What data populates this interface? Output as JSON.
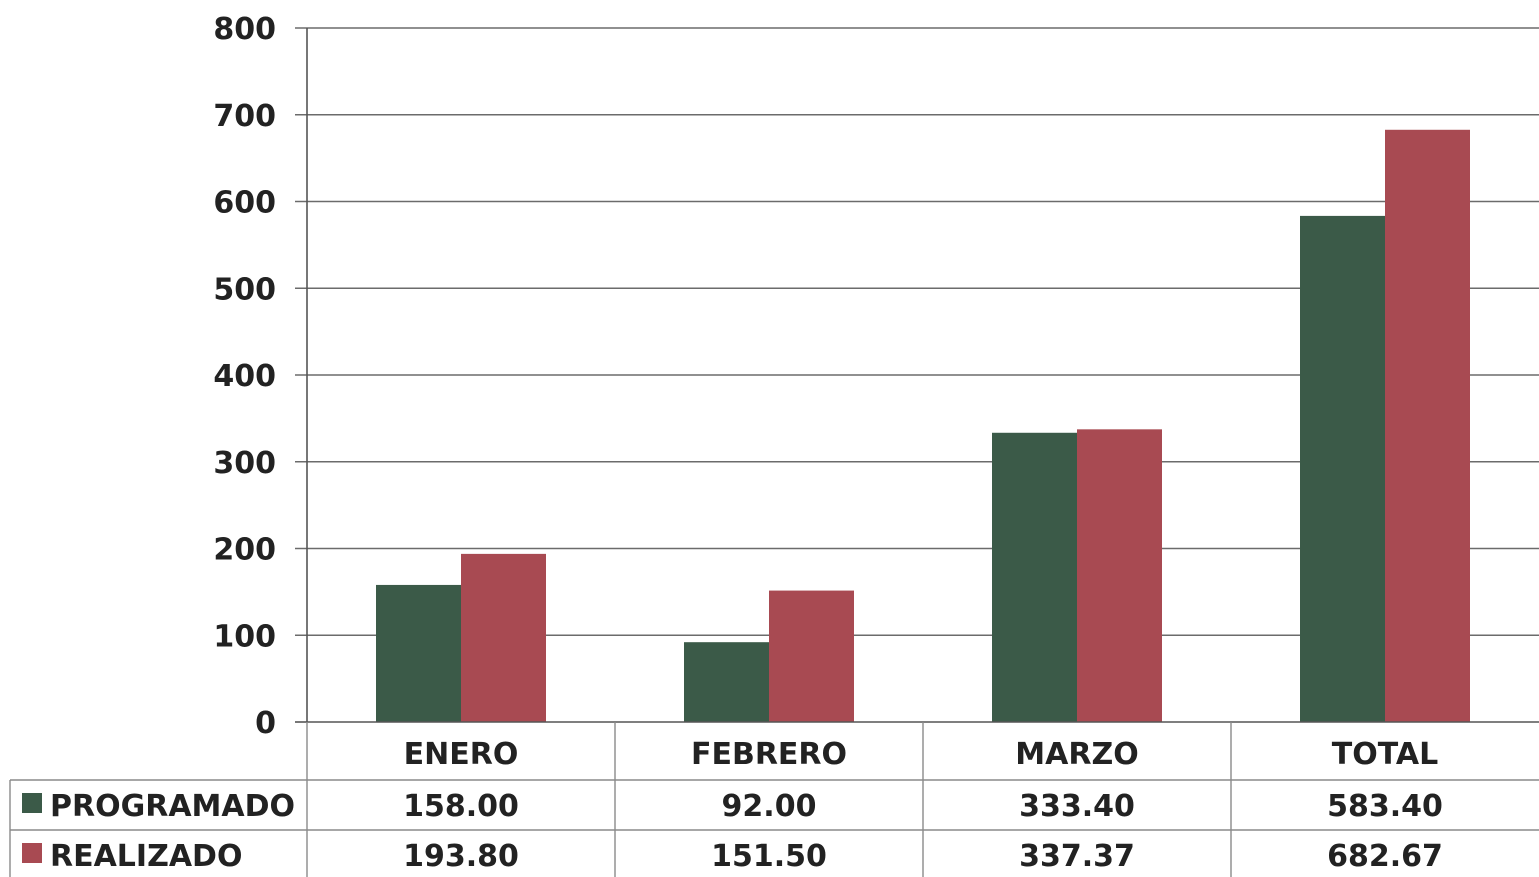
{
  "chart_data": {
    "type": "bar",
    "categories": [
      "ENERO",
      "FEBRERO",
      "MARZO",
      "TOTAL"
    ],
    "series": [
      {
        "name": "PROGRAMADO",
        "color": "#3b5a48",
        "values": [
          158.0,
          92.0,
          333.4,
          583.4
        ],
        "labels": [
          "158.00",
          "92.00",
          "333.40",
          "583.40"
        ]
      },
      {
        "name": "REALIZADO",
        "color": "#a84a52",
        "values": [
          193.8,
          151.5,
          337.37,
          682.67
        ],
        "labels": [
          "193.80",
          "151.50",
          "337.37",
          "682.67"
        ]
      }
    ],
    "yticks": [
      "0",
      "100",
      "200",
      "300",
      "400",
      "500",
      "600",
      "700",
      "800"
    ],
    "ylim": [
      0,
      800
    ],
    "grid": true,
    "legend": "left of data table"
  }
}
